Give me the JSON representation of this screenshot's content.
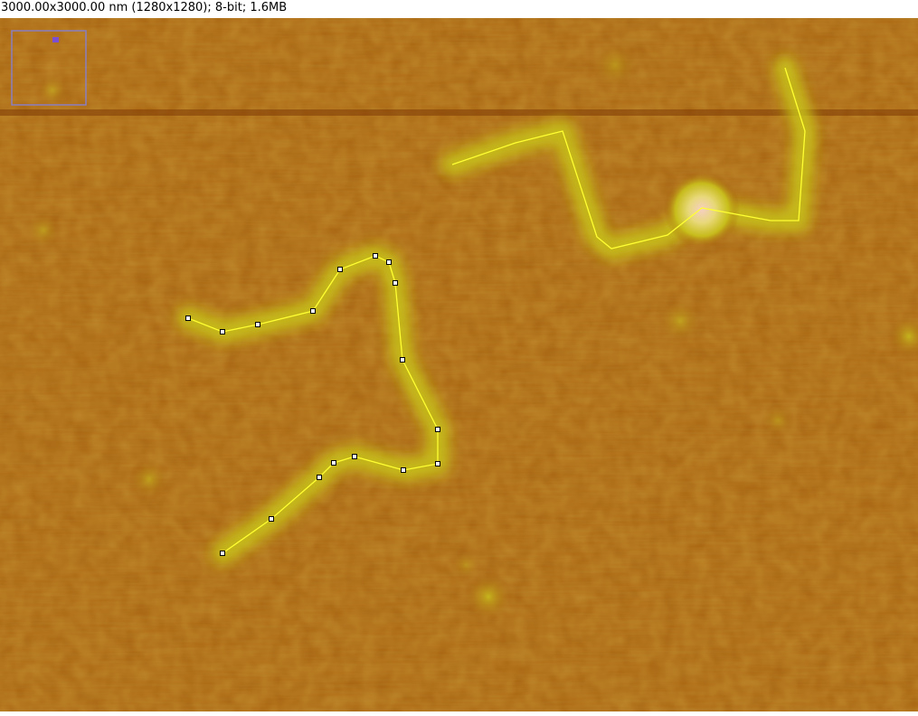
{
  "window": {
    "info_text": "3000.00x3000.00 nm (1280x1280); 8-bit; 1.6MB"
  },
  "colors": {
    "background": "#a65e0c",
    "trace": "#ffff33",
    "handle_fill": "#ffffff",
    "handle_stroke": "#000000",
    "navigator_frame": "#8a7fc0",
    "navigator_marker": "#7b4fd0",
    "dna_glow": "#c8c418",
    "blob_core": "#f2c9b8"
  },
  "image": {
    "type": "AFM height map",
    "colormap": "orange-yellow"
  },
  "overlay": {
    "segmented_line_selected": true,
    "segmented_line_unselected": true,
    "navigator_visible": true
  }
}
